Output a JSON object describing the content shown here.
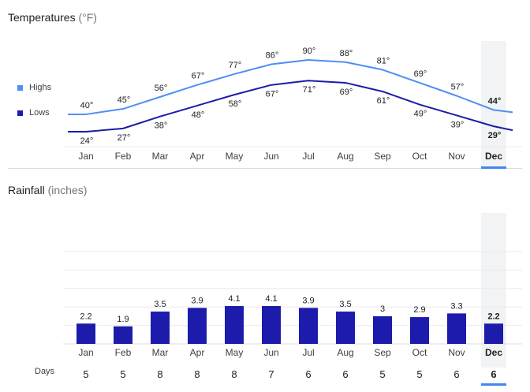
{
  "temperature": {
    "title": "Temperatures",
    "unit": "(°F)",
    "legend": {
      "highs": "Highs",
      "lows": "Lows"
    }
  },
  "rainfall": {
    "title": "Rainfall",
    "unit": "(inches)",
    "days_label": "Days"
  },
  "selected_month": "Dec",
  "colors": {
    "highs": "#4e8ff3",
    "lows": "#1c1bab",
    "bars": "#1c1bab",
    "selection": "#f1f3f4",
    "selection_bar": "#4285f4"
  },
  "chart_data": [
    {
      "type": "line",
      "title": "Temperatures (°F)",
      "categories": [
        "Jan",
        "Feb",
        "Mar",
        "Apr",
        "May",
        "Jun",
        "Jul",
        "Aug",
        "Sep",
        "Oct",
        "Nov",
        "Dec"
      ],
      "series": [
        {
          "name": "Highs",
          "values": [
            40,
            45,
            56,
            67,
            77,
            86,
            90,
            88,
            81,
            69,
            57,
            44
          ],
          "labels": [
            "40°",
            "45°",
            "56°",
            "67°",
            "77°",
            "86°",
            "90°",
            "88°",
            "81°",
            "69°",
            "57°",
            "44°"
          ]
        },
        {
          "name": "Lows",
          "values": [
            24,
            27,
            38,
            48,
            58,
            67,
            71,
            69,
            61,
            49,
            39,
            29
          ],
          "labels": [
            "24°",
            "27°",
            "38°",
            "48°",
            "58°",
            "67°",
            "71°",
            "69°",
            "61°",
            "49°",
            "39°",
            "29°"
          ]
        }
      ],
      "xlabel": "",
      "ylabel": "",
      "legend": "left"
    },
    {
      "type": "bar",
      "title": "Rainfall (inches)",
      "categories": [
        "Jan",
        "Feb",
        "Mar",
        "Apr",
        "May",
        "Jun",
        "Jul",
        "Aug",
        "Sep",
        "Oct",
        "Nov",
        "Dec"
      ],
      "values": [
        2.2,
        1.9,
        3.5,
        3.9,
        4.1,
        4.1,
        3.9,
        3.5,
        3,
        2.9,
        3.3,
        2.2
      ],
      "value_labels": [
        "2.2",
        "1.9",
        "3.5",
        "3.9",
        "4.1",
        "4.1",
        "3.9",
        "3.5",
        "3",
        "2.9",
        "3.3",
        "2.2"
      ],
      "days": [
        5,
        5,
        8,
        8,
        8,
        7,
        6,
        6,
        5,
        5,
        6,
        6
      ],
      "day_labels": [
        "5",
        "5",
        "8",
        "8",
        "8",
        "7",
        "6",
        "6",
        "5",
        "5",
        "6",
        "6"
      ],
      "ylim": [
        0,
        10
      ],
      "xlabel": "",
      "ylabel": "",
      "grid": true
    }
  ]
}
